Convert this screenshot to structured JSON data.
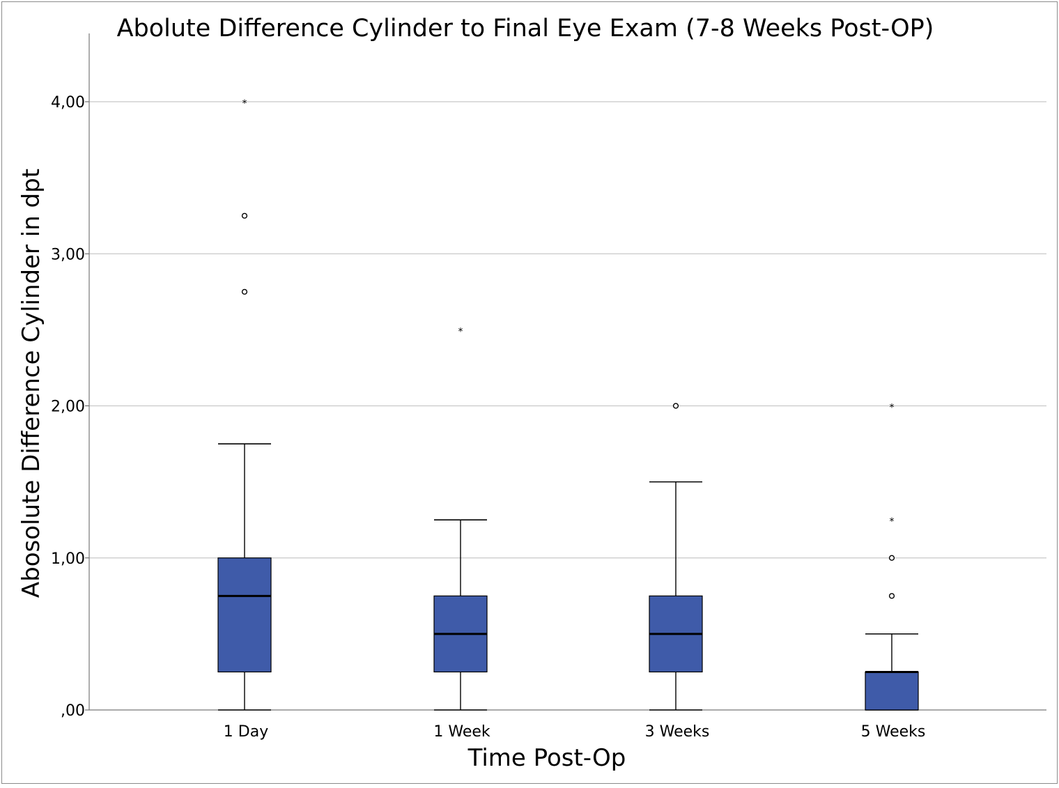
{
  "chart_data": {
    "type": "boxplot",
    "title": "Abolute Difference Cylinder to Final Eye Exam (7-8 Weeks Post-OP)",
    "xlabel": "Time Post-Op",
    "ylabel": "Abosolute Difference Cylinder in dpt",
    "ylim": [
      0,
      4.45
    ],
    "y_ticks": [
      {
        "value": 0,
        "label": ",00"
      },
      {
        "value": 1,
        "label": "1,00"
      },
      {
        "value": 2,
        "label": "2,00"
      },
      {
        "value": 3,
        "label": "3,00"
      },
      {
        "value": 4,
        "label": "4,00"
      }
    ],
    "grid": true,
    "box_color": "#3F5BA9",
    "categories": [
      "1 Day",
      "1 Week",
      "3 Weeks",
      "5 Weeks"
    ],
    "boxes": [
      {
        "category": "1 Day",
        "whisker_low": 0,
        "q1": 0.25,
        "median": 0.75,
        "q3": 1.0,
        "whisker_high": 1.75,
        "outliers": [
          2.75,
          3.25
        ],
        "extremes": [
          4.0
        ]
      },
      {
        "category": "1 Week",
        "whisker_low": 0,
        "q1": 0.25,
        "median": 0.5,
        "q3": 0.75,
        "whisker_high": 1.25,
        "outliers": [],
        "extremes": [
          2.5
        ]
      },
      {
        "category": "3 Weeks",
        "whisker_low": 0,
        "q1": 0.25,
        "median": 0.5,
        "q3": 0.75,
        "whisker_high": 1.5,
        "outliers": [
          2.0
        ],
        "extremes": []
      },
      {
        "category": "5 Weeks",
        "whisker_low": 0,
        "q1": 0,
        "median": 0.25,
        "q3": 0.25,
        "whisker_high": 0.5,
        "outliers": [
          0.75,
          1.0
        ],
        "extremes": [
          1.25,
          2.0
        ]
      }
    ]
  }
}
